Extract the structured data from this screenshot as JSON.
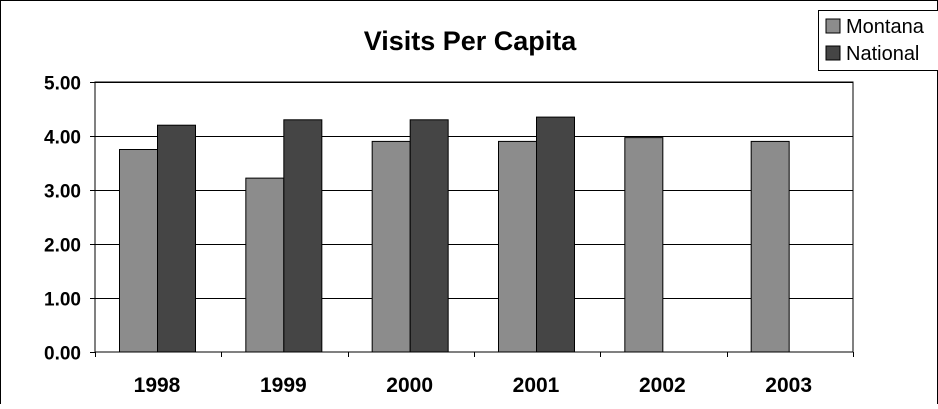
{
  "chart_data": {
    "type": "bar",
    "title": "Visits Per Capita",
    "categories": [
      "1998",
      "1999",
      "2000",
      "2001",
      "2002",
      "2003"
    ],
    "series": [
      {
        "name": "Montana",
        "values": [
          3.75,
          3.22,
          3.9,
          3.9,
          3.97,
          3.9
        ],
        "color": "#8c8c8c"
      },
      {
        "name": "National",
        "values": [
          4.2,
          4.3,
          4.3,
          4.35,
          null,
          null
        ],
        "color": "#454545"
      }
    ],
    "ylim": [
      0,
      5
    ],
    "yticks": [
      "0.00",
      "1.00",
      "2.00",
      "3.00",
      "4.00",
      "5.00"
    ],
    "grid": true,
    "legend_position": "top-right"
  }
}
